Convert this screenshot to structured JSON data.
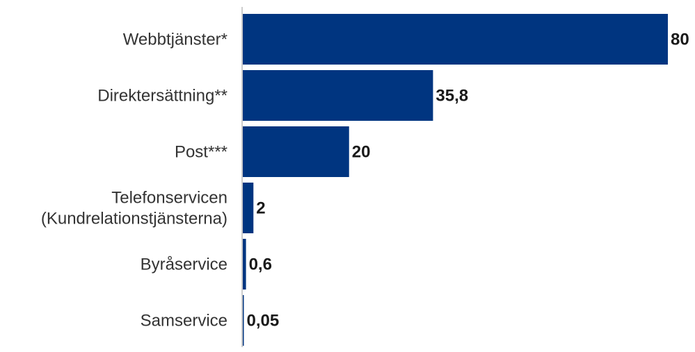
{
  "chart_data": {
    "type": "bar",
    "orientation": "horizontal",
    "categories": [
      [
        "Webbtjänster*"
      ],
      [
        "Direktersättning**"
      ],
      [
        "Post***"
      ],
      [
        "Telefonservicen",
        "(Kundrelationstjänsterna)"
      ],
      [
        "Byråservice"
      ],
      [
        "Samservice"
      ]
    ],
    "values": [
      80,
      35.8,
      20,
      2,
      0.6,
      0.05
    ],
    "value_labels": [
      "80",
      "35,8",
      "20",
      "2",
      "0,6",
      "0,05"
    ],
    "xlim": [
      0,
      80
    ],
    "title": "",
    "xlabel": "",
    "ylabel": "",
    "grid": false,
    "legend": "none",
    "bar_color": "#003580",
    "axis_color": "#cccccc"
  }
}
